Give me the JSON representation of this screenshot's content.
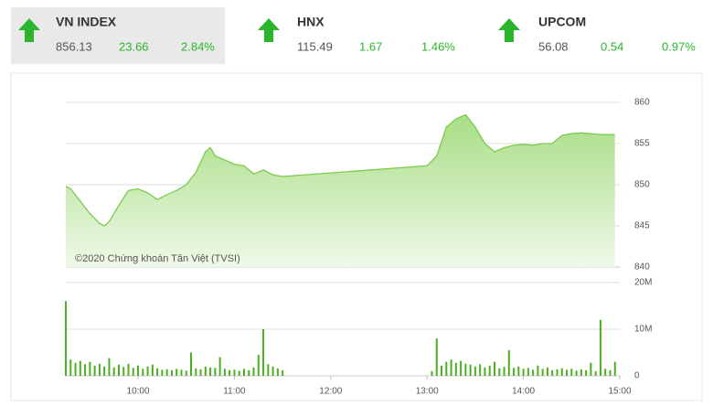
{
  "indices": [
    {
      "name": "VN INDEX",
      "price": "856.13",
      "change": "23.66",
      "percent": "2.84%"
    },
    {
      "name": "HNX",
      "price": "115.49",
      "change": "1.67",
      "percent": "1.46%"
    },
    {
      "name": "UPCOM",
      "price": "56.08",
      "change": "0.54",
      "percent": "0.97%"
    }
  ],
  "chart_data": [
    {
      "type": "area",
      "annotation": "©2020 Chứng khoán Tân Việt (TVSI)",
      "color": "#7ccb4f",
      "x": [
        9.25,
        9.3,
        9.4,
        9.5,
        9.6,
        9.65,
        9.7,
        9.8,
        9.9,
        10.0,
        10.1,
        10.2,
        10.3,
        10.4,
        10.5,
        10.6,
        10.7,
        10.75,
        10.8,
        10.9,
        11.0,
        11.1,
        11.2,
        11.3,
        11.4,
        11.5,
        13.0,
        13.1,
        13.2,
        13.3,
        13.4,
        13.5,
        13.6,
        13.7,
        13.8,
        13.9,
        14.0,
        14.1,
        14.2,
        14.3,
        14.4,
        14.5,
        14.6,
        14.7,
        14.8,
        14.95
      ],
      "values": [
        849.8,
        849.5,
        848.0,
        846.5,
        845.3,
        845.0,
        845.5,
        847.5,
        849.3,
        849.5,
        849.0,
        848.2,
        848.8,
        849.3,
        850.0,
        851.5,
        854.0,
        854.5,
        853.5,
        853.0,
        852.5,
        852.3,
        851.3,
        851.8,
        851.2,
        851.0,
        852.3,
        853.5,
        857.0,
        858.0,
        858.5,
        857.0,
        855.0,
        854.0,
        854.5,
        854.8,
        854.9,
        854.8,
        855.0,
        855.0,
        856.0,
        856.2,
        856.3,
        856.2,
        856.1,
        856.1
      ],
      "xlim": [
        9.25,
        15.0
      ],
      "ylim": [
        840,
        860
      ],
      "yticks": [
        840,
        845,
        850,
        855,
        860
      ],
      "grid": true
    },
    {
      "type": "bar",
      "color": "#4caf1f",
      "x": [
        9.25,
        9.3,
        9.35,
        9.4,
        9.45,
        9.5,
        9.55,
        9.6,
        9.65,
        9.7,
        9.75,
        9.8,
        9.85,
        9.9,
        9.95,
        10.0,
        10.05,
        10.1,
        10.15,
        10.2,
        10.25,
        10.3,
        10.35,
        10.4,
        10.45,
        10.5,
        10.55,
        10.6,
        10.65,
        10.7,
        10.75,
        10.8,
        10.85,
        10.9,
        10.95,
        11.0,
        11.05,
        11.1,
        11.15,
        11.2,
        11.25,
        11.3,
        11.35,
        11.4,
        11.45,
        11.5,
        13.05,
        13.1,
        13.15,
        13.2,
        13.25,
        13.3,
        13.35,
        13.4,
        13.45,
        13.5,
        13.55,
        13.6,
        13.65,
        13.7,
        13.75,
        13.8,
        13.85,
        13.9,
        13.95,
        14.0,
        14.05,
        14.1,
        14.15,
        14.2,
        14.25,
        14.3,
        14.35,
        14.4,
        14.45,
        14.5,
        14.55,
        14.6,
        14.65,
        14.7,
        14.75,
        14.8,
        14.85,
        14.9,
        14.95
      ],
      "values": [
        16000000,
        3500000,
        2800000,
        3200000,
        2500000,
        3000000,
        2200000,
        2600000,
        2000000,
        3800000,
        1800000,
        2400000,
        1900000,
        2600000,
        1700000,
        2200000,
        1500000,
        2000000,
        2400000,
        1600000,
        1300000,
        1400000,
        1200000,
        1500000,
        1300000,
        1100000,
        5000000,
        1600000,
        1400000,
        2000000,
        1800000,
        1700000,
        4000000,
        1500000,
        1200000,
        1300000,
        1100000,
        1500000,
        1200000,
        1800000,
        4500000,
        10000000,
        2500000,
        2000000,
        1600000,
        1200000,
        1000000,
        8000000,
        2200000,
        3000000,
        3500000,
        2800000,
        3200000,
        2600000,
        2400000,
        2000000,
        2500000,
        1800000,
        2200000,
        3000000,
        1600000,
        1900000,
        5500000,
        1700000,
        2000000,
        1500000,
        1700000,
        1300000,
        2200000,
        1500000,
        1800000,
        1200000,
        1400000,
        1600000,
        1300000,
        1500000,
        1100000,
        1400000,
        1200000,
        2800000,
        1000000,
        12000000,
        1500000,
        1200000,
        3000000
      ],
      "xlim": [
        9.25,
        15.0
      ],
      "xticks": [
        {
          "value": 10,
          "label": "10:00"
        },
        {
          "value": 11,
          "label": "11:00"
        },
        {
          "value": 12,
          "label": "12:00"
        },
        {
          "value": 13,
          "label": "13:00"
        },
        {
          "value": 14,
          "label": "14:00"
        },
        {
          "value": 15,
          "label": "15:00"
        }
      ],
      "ylim": [
        0,
        20000000
      ],
      "yticks": [
        0,
        {
          "value": 10000000,
          "label": "10M"
        },
        {
          "value": 20000000,
          "label": "20M"
        }
      ],
      "grid": true
    }
  ]
}
